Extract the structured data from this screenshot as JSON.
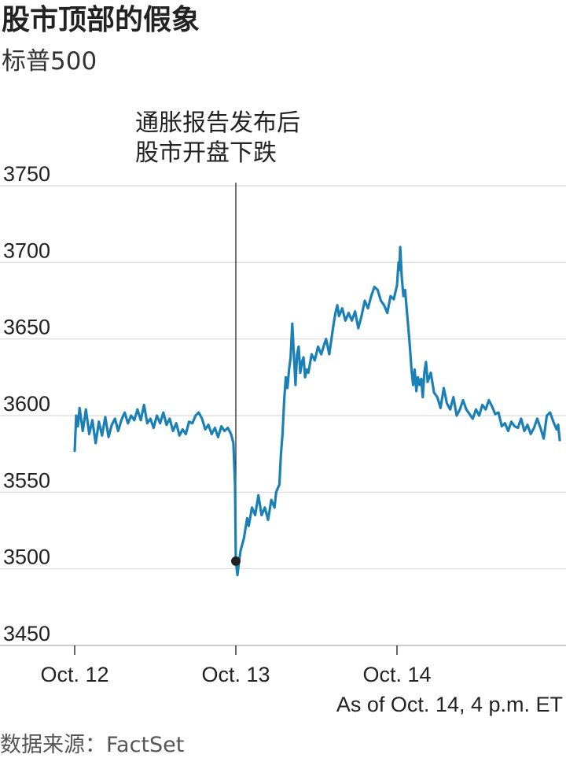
{
  "header": {
    "title": "股市顶部的假象",
    "subtitle": "标普500"
  },
  "footer": {
    "as_of": "As of Oct. 14, 4 p.m. ET",
    "source": "数据来源：FactSet"
  },
  "colors": {
    "line": "#1a80b6",
    "grid": "#d9d9d9",
    "axis": "#bbbbbb",
    "marker": "#222222"
  },
  "chart_data": {
    "type": "line",
    "title": "股市顶部的假象",
    "subtitle": "标普500",
    "ylim": [
      3450,
      3750
    ],
    "yticks": [
      3750,
      3700,
      3650,
      3600,
      3550,
      3500,
      3450
    ],
    "xlim": [
      0,
      3.07
    ],
    "xticks": [
      {
        "x": 0,
        "label": "Oct. 12"
      },
      {
        "x": 1,
        "label": "Oct. 13"
      },
      {
        "x": 2,
        "label": "Oct. 14"
      }
    ],
    "grid": true,
    "annotation": {
      "lines": [
        "通胀报告发布后",
        "股市开盘下跌"
      ],
      "x": 1.0,
      "y": 3505
    },
    "series": [
      {
        "values": [
          [
            0.0,
            3577
          ],
          [
            0.01,
            3600
          ],
          [
            0.02,
            3593
          ],
          [
            0.03,
            3605
          ],
          [
            0.05,
            3590
          ],
          [
            0.07,
            3604
          ],
          [
            0.09,
            3588
          ],
          [
            0.11,
            3597
          ],
          [
            0.13,
            3582
          ],
          [
            0.15,
            3596
          ],
          [
            0.17,
            3587
          ],
          [
            0.19,
            3599
          ],
          [
            0.21,
            3586
          ],
          [
            0.23,
            3594
          ],
          [
            0.25,
            3598
          ],
          [
            0.27,
            3590
          ],
          [
            0.29,
            3597
          ],
          [
            0.31,
            3602
          ],
          [
            0.33,
            3595
          ],
          [
            0.35,
            3600
          ],
          [
            0.37,
            3597
          ],
          [
            0.39,
            3604
          ],
          [
            0.41,
            3597
          ],
          [
            0.43,
            3607
          ],
          [
            0.45,
            3595
          ],
          [
            0.47,
            3598
          ],
          [
            0.49,
            3592
          ],
          [
            0.51,
            3600
          ],
          [
            0.53,
            3595
          ],
          [
            0.55,
            3602
          ],
          [
            0.57,
            3594
          ],
          [
            0.59,
            3598
          ],
          [
            0.61,
            3590
          ],
          [
            0.63,
            3595
          ],
          [
            0.65,
            3587
          ],
          [
            0.67,
            3591
          ],
          [
            0.69,
            3588
          ],
          [
            0.71,
            3596
          ],
          [
            0.73,
            3595
          ],
          [
            0.75,
            3600
          ],
          [
            0.77,
            3602
          ],
          [
            0.79,
            3598
          ],
          [
            0.81,
            3591
          ],
          [
            0.83,
            3594
          ],
          [
            0.85,
            3588
          ],
          [
            0.87,
            3592
          ],
          [
            0.89,
            3586
          ],
          [
            0.91,
            3593
          ],
          [
            0.93,
            3590
          ],
          [
            0.95,
            3592
          ],
          [
            0.97,
            3588
          ],
          [
            0.985,
            3582
          ],
          [
            0.995,
            3555
          ],
          [
            1.0,
            3505
          ],
          [
            1.01,
            3496
          ],
          [
            1.02,
            3505
          ],
          [
            1.03,
            3512
          ],
          [
            1.05,
            3520
          ],
          [
            1.07,
            3533
          ],
          [
            1.08,
            3528
          ],
          [
            1.1,
            3540
          ],
          [
            1.12,
            3535
          ],
          [
            1.14,
            3548
          ],
          [
            1.16,
            3535
          ],
          [
            1.18,
            3540
          ],
          [
            1.2,
            3532
          ],
          [
            1.22,
            3545
          ],
          [
            1.24,
            3540
          ],
          [
            1.25,
            3550
          ],
          [
            1.27,
            3555
          ],
          [
            1.28,
            3575
          ],
          [
            1.29,
            3588
          ],
          [
            1.3,
            3610
          ],
          [
            1.31,
            3625
          ],
          [
            1.32,
            3618
          ],
          [
            1.33,
            3630
          ],
          [
            1.34,
            3638
          ],
          [
            1.35,
            3660
          ],
          [
            1.36,
            3640
          ],
          [
            1.37,
            3620
          ],
          [
            1.38,
            3640
          ],
          [
            1.39,
            3645
          ],
          [
            1.4,
            3628
          ],
          [
            1.41,
            3635
          ],
          [
            1.42,
            3638
          ],
          [
            1.43,
            3625
          ],
          [
            1.44,
            3630
          ],
          [
            1.45,
            3628
          ],
          [
            1.47,
            3640
          ],
          [
            1.49,
            3636
          ],
          [
            1.51,
            3645
          ],
          [
            1.53,
            3640
          ],
          [
            1.55,
            3647
          ],
          [
            1.56,
            3650
          ],
          [
            1.58,
            3640
          ],
          [
            1.6,
            3655
          ],
          [
            1.61,
            3662
          ],
          [
            1.62,
            3668
          ],
          [
            1.63,
            3672
          ],
          [
            1.64,
            3665
          ],
          [
            1.66,
            3670
          ],
          [
            1.68,
            3662
          ],
          [
            1.7,
            3667
          ],
          [
            1.72,
            3662
          ],
          [
            1.74,
            3668
          ],
          [
            1.76,
            3657
          ],
          [
            1.78,
            3665
          ],
          [
            1.8,
            3675
          ],
          [
            1.82,
            3670
          ],
          [
            1.84,
            3678
          ],
          [
            1.86,
            3684
          ],
          [
            1.88,
            3682
          ],
          [
            1.9,
            3675
          ],
          [
            1.92,
            3672
          ],
          [
            1.94,
            3667
          ],
          [
            1.96,
            3678
          ],
          [
            1.98,
            3676
          ],
          [
            2.0,
            3685
          ],
          [
            2.01,
            3700
          ],
          [
            2.015,
            3695
          ],
          [
            2.02,
            3710
          ],
          [
            2.03,
            3690
          ],
          [
            2.04,
            3678
          ],
          [
            2.05,
            3682
          ],
          [
            2.06,
            3670
          ],
          [
            2.07,
            3658
          ],
          [
            2.08,
            3645
          ],
          [
            2.09,
            3630
          ],
          [
            2.1,
            3620
          ],
          [
            2.11,
            3630
          ],
          [
            2.12,
            3616
          ],
          [
            2.13,
            3625
          ],
          [
            2.14,
            3620
          ],
          [
            2.15,
            3624
          ],
          [
            2.16,
            3612
          ],
          [
            2.17,
            3628
          ],
          [
            2.18,
            3635
          ],
          [
            2.19,
            3622
          ],
          [
            2.21,
            3628
          ],
          [
            2.23,
            3615
          ],
          [
            2.25,
            3612
          ],
          [
            2.27,
            3605
          ],
          [
            2.29,
            3618
          ],
          [
            2.31,
            3608
          ],
          [
            2.33,
            3604
          ],
          [
            2.35,
            3612
          ],
          [
            2.37,
            3600
          ],
          [
            2.39,
            3604
          ],
          [
            2.41,
            3610
          ],
          [
            2.43,
            3604
          ],
          [
            2.45,
            3601
          ],
          [
            2.47,
            3598
          ],
          [
            2.49,
            3604
          ],
          [
            2.51,
            3600
          ],
          [
            2.53,
            3607
          ],
          [
            2.55,
            3604
          ],
          [
            2.57,
            3610
          ],
          [
            2.59,
            3606
          ],
          [
            2.61,
            3601
          ],
          [
            2.63,
            3602
          ],
          [
            2.65,
            3593
          ],
          [
            2.67,
            3595
          ],
          [
            2.69,
            3590
          ],
          [
            2.71,
            3596
          ],
          [
            2.73,
            3593
          ],
          [
            2.75,
            3592
          ],
          [
            2.77,
            3598
          ],
          [
            2.79,
            3590
          ],
          [
            2.81,
            3594
          ],
          [
            2.83,
            3588
          ],
          [
            2.85,
            3592
          ],
          [
            2.87,
            3598
          ],
          [
            2.89,
            3592
          ],
          [
            2.91,
            3585
          ],
          [
            2.93,
            3600
          ],
          [
            2.95,
            3602
          ],
          [
            2.97,
            3596
          ],
          [
            2.99,
            3591
          ],
          [
            3.0,
            3594
          ],
          [
            3.01,
            3584
          ]
        ]
      }
    ]
  }
}
